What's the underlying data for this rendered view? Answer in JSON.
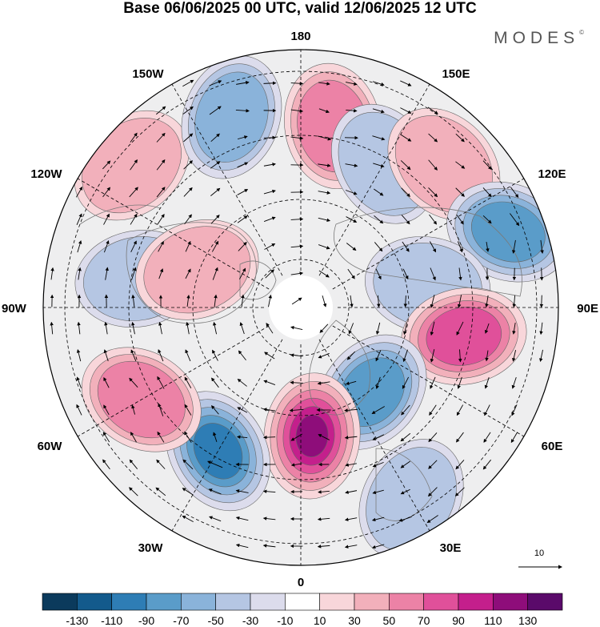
{
  "title": "Base 06/06/2025 00 UTC, valid 12/06/2025 12 UTC",
  "brand": "MODES",
  "brand_mark": "©",
  "longitude_labels": {
    "top": "180",
    "bottom": "0",
    "left": "90W",
    "right": "90E",
    "upper_left": "150W",
    "upper_right": "150E",
    "mid_upper_left": "120W",
    "mid_upper_right": "120E",
    "lower_left": "60W",
    "lower_right": "60E",
    "bottom_left": "30W",
    "bottom_right": "30E"
  },
  "reference_vector": {
    "value": "10"
  },
  "colorbar": {
    "ticks": [
      "-130",
      "-110",
      "-90",
      "-70",
      "-50",
      "-30",
      "-10",
      "10",
      "30",
      "50",
      "70",
      "90",
      "110",
      "130"
    ],
    "colors": [
      "#0b3a5c",
      "#135a8c",
      "#2e7db5",
      "#5a9cc9",
      "#8ab3da",
      "#b5c6e3",
      "#dcdcec",
      "#ffffff",
      "#f8d6da",
      "#f2b0bb",
      "#ec82a6",
      "#e0509a",
      "#c41f8c",
      "#8e0d7a",
      "#5a0a6a"
    ]
  },
  "map_data": {
    "projection": "north polar stereographic",
    "anomalies": [
      {
        "name": "positive",
        "value": 45,
        "lon": -130,
        "lat": 30
      },
      {
        "name": "negative",
        "value": -60,
        "lon": -160,
        "lat": 35
      },
      {
        "name": "positive",
        "value": 50,
        "lon": 170,
        "lat": 40
      },
      {
        "name": "negative",
        "value": -35,
        "lon": 150,
        "lat": 45
      },
      {
        "name": "positive",
        "value": 30,
        "lon": 135,
        "lat": 35
      },
      {
        "name": "negative",
        "value": -80,
        "lon": 110,
        "lat": 30
      },
      {
        "name": "negative",
        "value": -40,
        "lon": 100,
        "lat": 55
      },
      {
        "name": "positive",
        "value": 70,
        "lon": 80,
        "lat": 45
      },
      {
        "name": "negative",
        "value": -70,
        "lon": 40,
        "lat": 60
      },
      {
        "name": "positive",
        "value": 110,
        "lon": 5,
        "lat": 55
      },
      {
        "name": "negative",
        "value": -90,
        "lon": -30,
        "lat": 45
      },
      {
        "name": "positive",
        "value": 60,
        "lon": -60,
        "lat": 40
      },
      {
        "name": "negative",
        "value": -35,
        "lon": -100,
        "lat": 45
      },
      {
        "name": "positive",
        "value": 30,
        "lon": -110,
        "lat": 60
      },
      {
        "name": "negative",
        "value": -40,
        "lon": 30,
        "lat": 30
      }
    ]
  }
}
